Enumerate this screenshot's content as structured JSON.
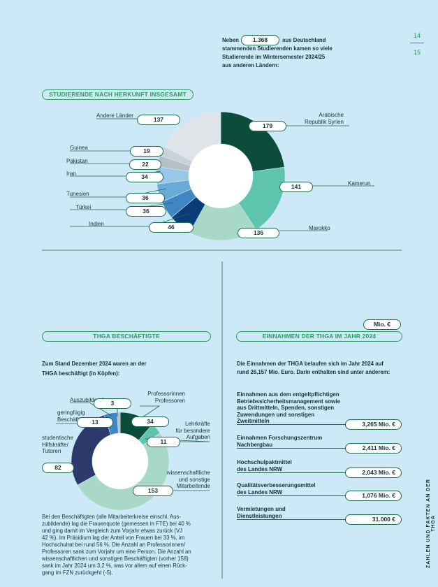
{
  "page_numbers": {
    "top": "14",
    "bottom": "15"
  },
  "side_text": "ZAHLEN UND FAKTEN AN DER THGA",
  "intro": {
    "prefix": "Neben",
    "value": "1.368",
    "suffix": "aus Deutschland",
    "line2": "stammenden Studierenden kamen so viele",
    "line3": "Studierende im Wintersemester 2024/25",
    "line4": "aus anderen Ländern:"
  },
  "section1": {
    "title": "STUDIERENDE NACH HERKUNFT INSGESAMT",
    "chart_data": {
      "type": "pie",
      "categories": [
        "Arabische Republik Syrien",
        "Kamerun",
        "Marokko",
        "Indien",
        "Türkei",
        "Tunesien",
        "Iran",
        "Pakistan",
        "Guinea",
        "Andere Länder"
      ],
      "values": [
        179,
        141,
        136,
        46,
        36,
        36,
        34,
        22,
        19,
        137
      ],
      "colors": [
        "#0b4d3a",
        "#5ec4ad",
        "#a8d8c6",
        "#0b3c7a",
        "#3f86c5",
        "#6aaad6",
        "#98c7ea",
        "#b5bfc8",
        "#c8d2da",
        "#dfe4e8"
      ]
    },
    "labels": {
      "syria_line1": "Arabische",
      "syria_line2": "Republik Syrien",
      "kamerun": "Kamerun",
      "marokko": "Marokko",
      "indien": "Indien",
      "tuerkei": "Türkei",
      "tunesien": "Tunesien",
      "iran": "Iran",
      "pakistan": "Pakistan",
      "guinea": "Guinea",
      "andere": "Andere Länder"
    }
  },
  "section2": {
    "title": "THGA BESCHÄFTIGTE",
    "intro_line1": "Zum Stand Dezember 2024 waren an der",
    "intro_line2": "THGA beschäftigt (in Köpfen):",
    "chart_data": {
      "type": "pie",
      "categories": [
        "Professorinnen Professoren",
        "Lehrkräfte für besondere Aufgaben",
        "wissenschaftliche und sonstige Mitarbeitende",
        "studentische Hilfskräfte/ Tutoren",
        "geringfügig Beschäftigte",
        "Auszubildende"
      ],
      "values": [
        34,
        11,
        153,
        82,
        13,
        3
      ],
      "colors": [
        "#0b4d3a",
        "#5ec4ad",
        "#a8d8c6",
        "#2c3a6b",
        "#3f86c5",
        "#b5bfc8"
      ]
    },
    "labels": {
      "prof_line1": "Professorinnen",
      "prof_line2": "Professoren",
      "lehr_line1": "Lehrkräfte",
      "lehr_line2": "für besondere",
      "lehr_line3": "Aufgaben",
      "wiss_line1": "wissenschaftliche",
      "wiss_line2": "und sonstige",
      "wiss_line3": "Mitarbeitende",
      "stud_line1": "studentische",
      "stud_line2": "Hilfskräfte/",
      "stud_line3": "Tutoren",
      "ger_line1": "geringfügig",
      "ger_line2": "Beschäftigte",
      "azubi": "Auszubildende"
    },
    "paragraph": [
      "Bei den Beschäftigten (alle Mitarbeiterkreise einschl. Aus-",
      "zubildende) lag die Frauenquote (gemessen in FTE) bei 40 %",
      "und ging damit im Vergleich zum Vorjahr etwas zurück (VJ",
      "42 %). Im Präsidium lag der Anteil von Frauen bei 33 %, im",
      "Hochschulrat bei rund 56 %. Die Anzahl an Professorinnen/",
      "Professoren sank zum Vorjahr um eine Person. Die Anzahl an",
      "wissenschaftlichen und sonstigen Beschäftigten (vorher 158)",
      "sank im Jahr 2024 um 3,2 %, was vor allem auf einen Rück-",
      "gang im FZN zurückgeht (-5)."
    ]
  },
  "section3": {
    "unit_badge": "Mio. €",
    "title": "EINNAHMEN DER THGA IM JAHR 2024",
    "intro_line1": "Die Einnahmen der THGA belaufen sich im Jahr 2024 auf",
    "intro_line2": "rund 26,157 Mio. Euro. Darin enthalten sind unter anderem:",
    "items": [
      {
        "lines": [
          "Einnahmen aus dem entgeltpflichtigen",
          "Betriebssicherheitsmanagement sowie",
          "aus Drittmitteln, Spenden, sonstigen",
          "Zuwendungen und sonstigen",
          "Zweitmitteln"
        ],
        "value": "3,265 Mio. €"
      },
      {
        "lines": [
          "Einnahmen Forschungszentrum",
          "Nachbergbau"
        ],
        "value": "2,411 Mio. €"
      },
      {
        "lines": [
          "Hochschulpaktmittel",
          "des Landes NRW"
        ],
        "value": "2,043 Mio. €"
      },
      {
        "lines": [
          "Qualitätsverbesserungsmittel",
          "des Landes NRW"
        ],
        "value": "1,076 Mio. €"
      },
      {
        "lines": [
          "Vermietungen und",
          "Dienstleistungen"
        ],
        "value": "31.000 €"
      }
    ]
  }
}
